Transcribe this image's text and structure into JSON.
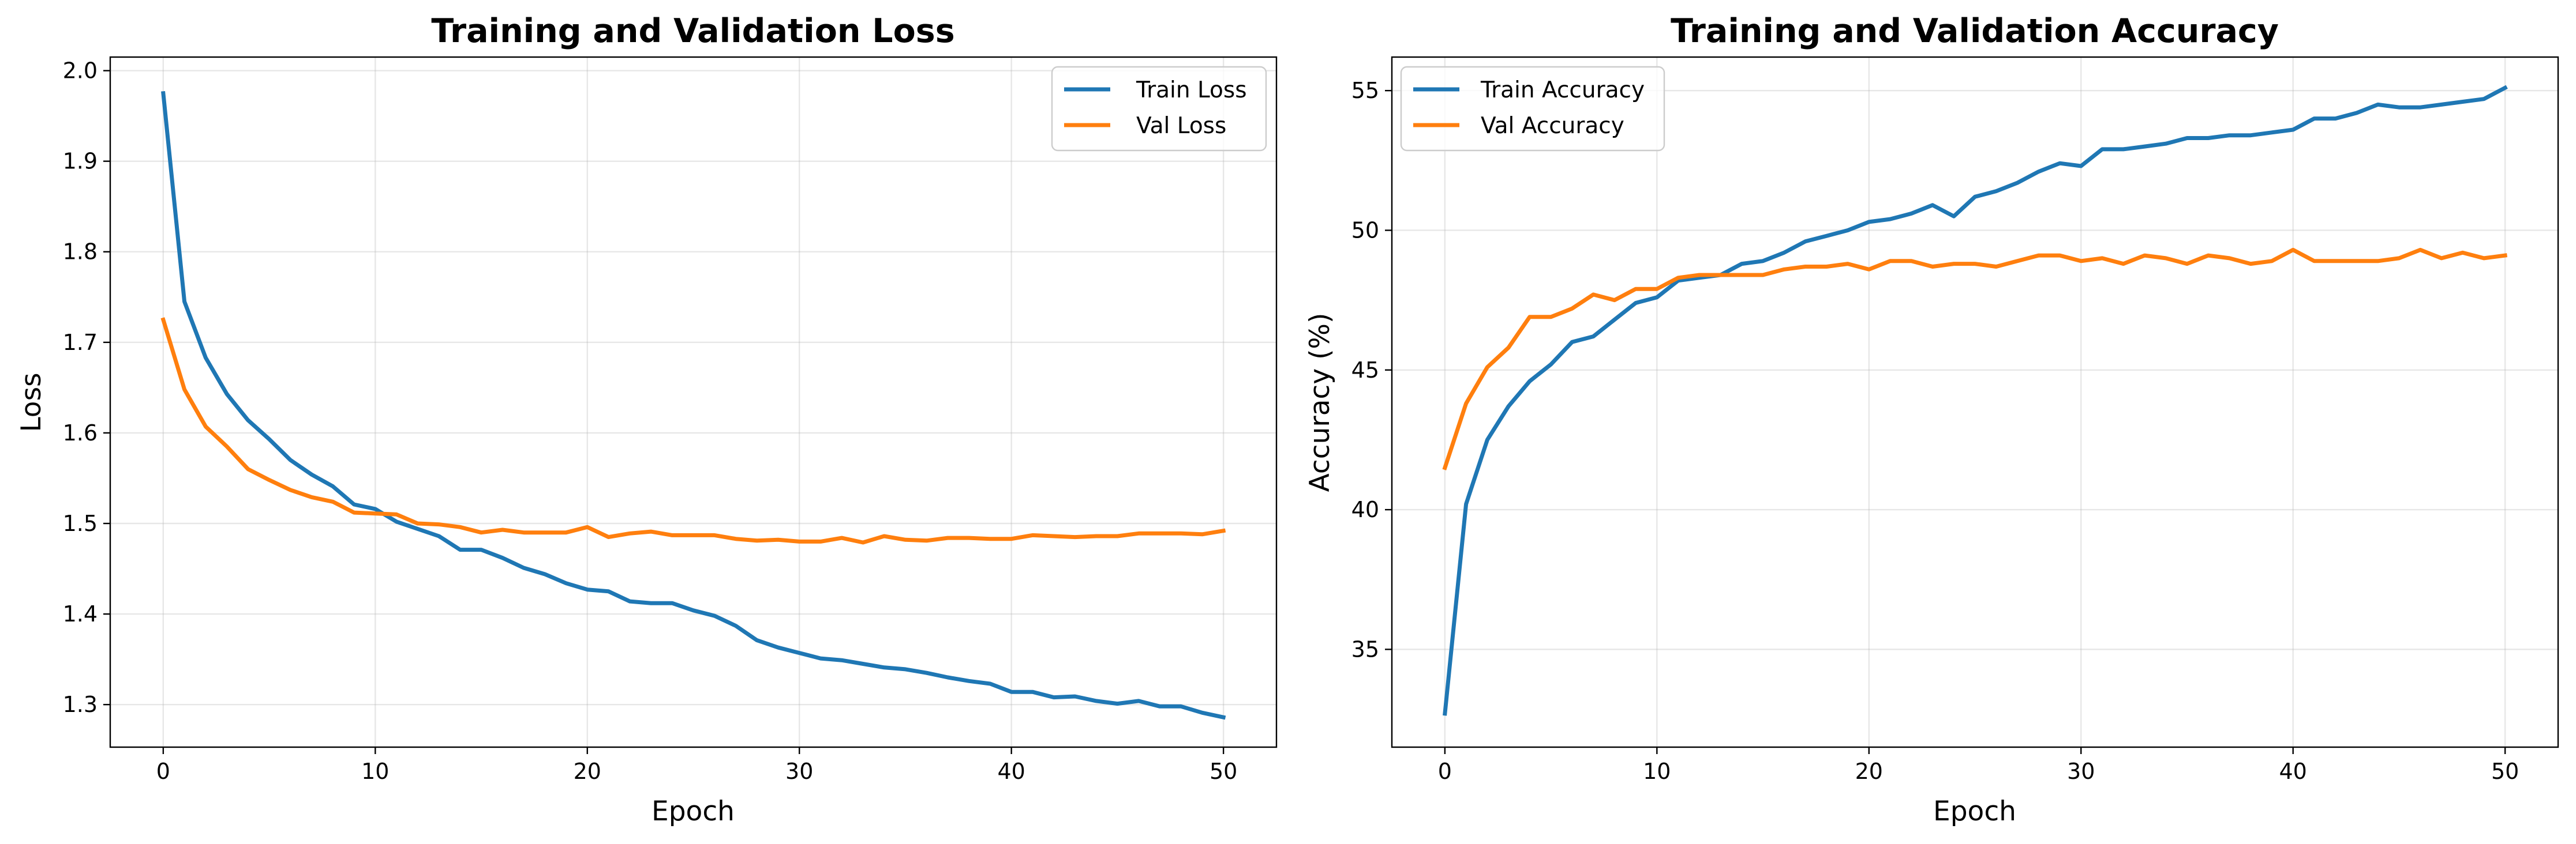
{
  "colors": {
    "train": "#1f77b4",
    "val": "#ff7f0e"
  },
  "chart_data": [
    {
      "id": "loss",
      "type": "line",
      "title": "Training and Validation Loss",
      "xlabel": "Epoch",
      "ylabel": "Loss",
      "xlim": [
        -2.5,
        52.5
      ],
      "ylim": [
        1.253,
        2.015
      ],
      "xticks": [
        0,
        10,
        20,
        30,
        40,
        50
      ],
      "yticks": [
        1.3,
        1.4,
        1.5,
        1.6,
        1.7,
        1.8,
        1.9,
        2.0
      ],
      "ytick_labels": [
        "1.3",
        "1.4",
        "1.5",
        "1.6",
        "1.7",
        "1.8",
        "1.9",
        "2.0"
      ],
      "grid": true,
      "legend_position": "upper right",
      "x": [
        0,
        1,
        2,
        3,
        4,
        5,
        6,
        7,
        8,
        9,
        10,
        11,
        12,
        13,
        14,
        15,
        16,
        17,
        18,
        19,
        20,
        21,
        22,
        23,
        24,
        25,
        26,
        27,
        28,
        29,
        30,
        31,
        32,
        33,
        34,
        35,
        36,
        37,
        38,
        39,
        40,
        41,
        42,
        43,
        44,
        45,
        46,
        47,
        48,
        49,
        50
      ],
      "series": [
        {
          "name": "Train Loss",
          "color_key": "train",
          "values": [
            1.975,
            1.745,
            1.683,
            1.643,
            1.614,
            1.593,
            1.57,
            1.554,
            1.541,
            1.521,
            1.516,
            1.502,
            1.494,
            1.486,
            1.471,
            1.471,
            1.462,
            1.451,
            1.444,
            1.434,
            1.427,
            1.425,
            1.414,
            1.412,
            1.412,
            1.404,
            1.398,
            1.387,
            1.371,
            1.363,
            1.357,
            1.351,
            1.349,
            1.345,
            1.341,
            1.339,
            1.335,
            1.33,
            1.326,
            1.323,
            1.314,
            1.314,
            1.308,
            1.309,
            1.304,
            1.301,
            1.304,
            1.298,
            1.298,
            1.291,
            1.286
          ]
        },
        {
          "name": "Val Loss",
          "color_key": "val",
          "values": [
            1.725,
            1.648,
            1.607,
            1.585,
            1.56,
            1.548,
            1.537,
            1.529,
            1.524,
            1.512,
            1.511,
            1.51,
            1.5,
            1.499,
            1.496,
            1.49,
            1.493,
            1.49,
            1.49,
            1.49,
            1.496,
            1.485,
            1.489,
            1.491,
            1.487,
            1.487,
            1.487,
            1.483,
            1.481,
            1.482,
            1.48,
            1.48,
            1.484,
            1.479,
            1.486,
            1.482,
            1.481,
            1.484,
            1.484,
            1.483,
            1.483,
            1.487,
            1.486,
            1.485,
            1.486,
            1.486,
            1.489,
            1.489,
            1.489,
            1.488,
            1.492
          ]
        }
      ]
    },
    {
      "id": "accuracy",
      "type": "line",
      "title": "Training and Validation Accuracy",
      "xlabel": "Epoch",
      "ylabel": "Accuracy (%)",
      "xlim": [
        -2.5,
        52.5
      ],
      "ylim": [
        31.5,
        56.2
      ],
      "xticks": [
        0,
        10,
        20,
        30,
        40,
        50
      ],
      "yticks": [
        35,
        40,
        45,
        50,
        55
      ],
      "ytick_labels": [
        "35",
        "40",
        "45",
        "50",
        "55"
      ],
      "grid": true,
      "legend_position": "upper left",
      "x": [
        0,
        1,
        2,
        3,
        4,
        5,
        6,
        7,
        8,
        9,
        10,
        11,
        12,
        13,
        14,
        15,
        16,
        17,
        18,
        19,
        20,
        21,
        22,
        23,
        24,
        25,
        26,
        27,
        28,
        29,
        30,
        31,
        32,
        33,
        34,
        35,
        36,
        37,
        38,
        39,
        40,
        41,
        42,
        43,
        44,
        45,
        46,
        47,
        48,
        49,
        50
      ],
      "series": [
        {
          "name": "Train Accuracy",
          "color_key": "train",
          "values": [
            32.7,
            40.2,
            42.5,
            43.7,
            44.6,
            45.2,
            46.0,
            46.2,
            46.8,
            47.4,
            47.6,
            48.2,
            48.3,
            48.4,
            48.8,
            48.9,
            49.2,
            49.6,
            49.8,
            50.0,
            50.3,
            50.4,
            50.6,
            50.9,
            50.5,
            51.2,
            51.4,
            51.7,
            52.1,
            52.4,
            52.3,
            52.9,
            52.9,
            53.0,
            53.1,
            53.3,
            53.3,
            53.4,
            53.4,
            53.5,
            53.6,
            54.0,
            54.0,
            54.2,
            54.5,
            54.4,
            54.4,
            54.5,
            54.6,
            54.7,
            55.1
          ]
        },
        {
          "name": "Val Accuracy",
          "color_key": "val",
          "values": [
            41.5,
            43.8,
            45.1,
            45.8,
            46.9,
            46.9,
            47.2,
            47.7,
            47.5,
            47.9,
            47.9,
            48.3,
            48.4,
            48.4,
            48.4,
            48.4,
            48.6,
            48.7,
            48.7,
            48.8,
            48.6,
            48.9,
            48.9,
            48.7,
            48.8,
            48.8,
            48.7,
            48.9,
            49.1,
            49.1,
            48.9,
            49.0,
            48.8,
            49.1,
            49.0,
            48.8,
            49.1,
            49.0,
            48.8,
            48.9,
            49.3,
            48.9,
            48.9,
            48.9,
            48.9,
            49.0,
            49.3,
            49.0,
            49.2,
            49.0,
            49.1
          ]
        }
      ]
    }
  ]
}
